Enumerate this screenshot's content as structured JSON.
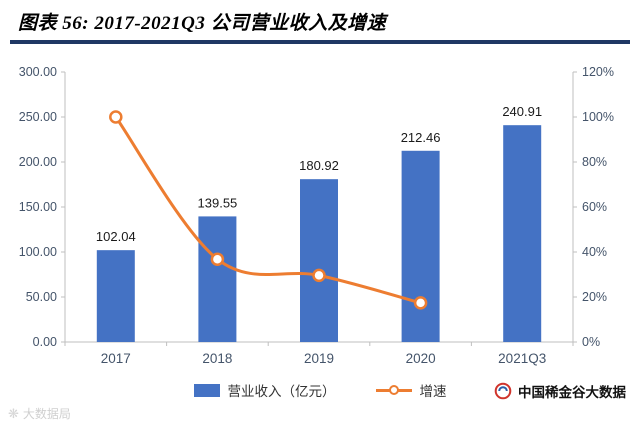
{
  "header": {
    "title": "图表 56: 2017-2021Q3 公司营业收入及增速",
    "rule_color": "#1F3864"
  },
  "chart_data": {
    "type": "bar+line",
    "title": "2017-2021Q3 公司营业收入及增速",
    "categories": [
      "2017",
      "2018",
      "2019",
      "2020",
      "2021Q3"
    ],
    "series": [
      {
        "name": "营业收入（亿元）",
        "type": "bar",
        "axis": "left",
        "color": "#4472C4",
        "values": [
          102.04,
          139.55,
          180.92,
          212.46,
          240.91
        ],
        "labels": [
          "102.04",
          "139.55",
          "180.92",
          "212.46",
          "240.91"
        ]
      },
      {
        "name": "增速",
        "type": "line",
        "axis": "right",
        "color": "#ED7D31",
        "marker": "circle",
        "values": [
          100,
          36.8,
          29.6,
          17.4,
          null
        ]
      }
    ],
    "left_axis": {
      "min": 0,
      "max": 300,
      "step": 50,
      "decimals": 2,
      "ticks": [
        "0.00",
        "50.00",
        "100.00",
        "150.00",
        "200.00",
        "250.00",
        "300.00"
      ]
    },
    "right_axis": {
      "min": 0,
      "max": 120,
      "step": 20,
      "suffix": "%",
      "ticks": [
        "0%",
        "20%",
        "40%",
        "60%",
        "80%",
        "100%",
        "120%"
      ]
    },
    "grid": false,
    "legend_position": "bottom"
  },
  "legend": {
    "revenue_label": "营业收入（亿元）",
    "growth_label": "增速"
  },
  "footer": {
    "brand": "中国稀金谷大数据",
    "watermark": "大数据局"
  }
}
